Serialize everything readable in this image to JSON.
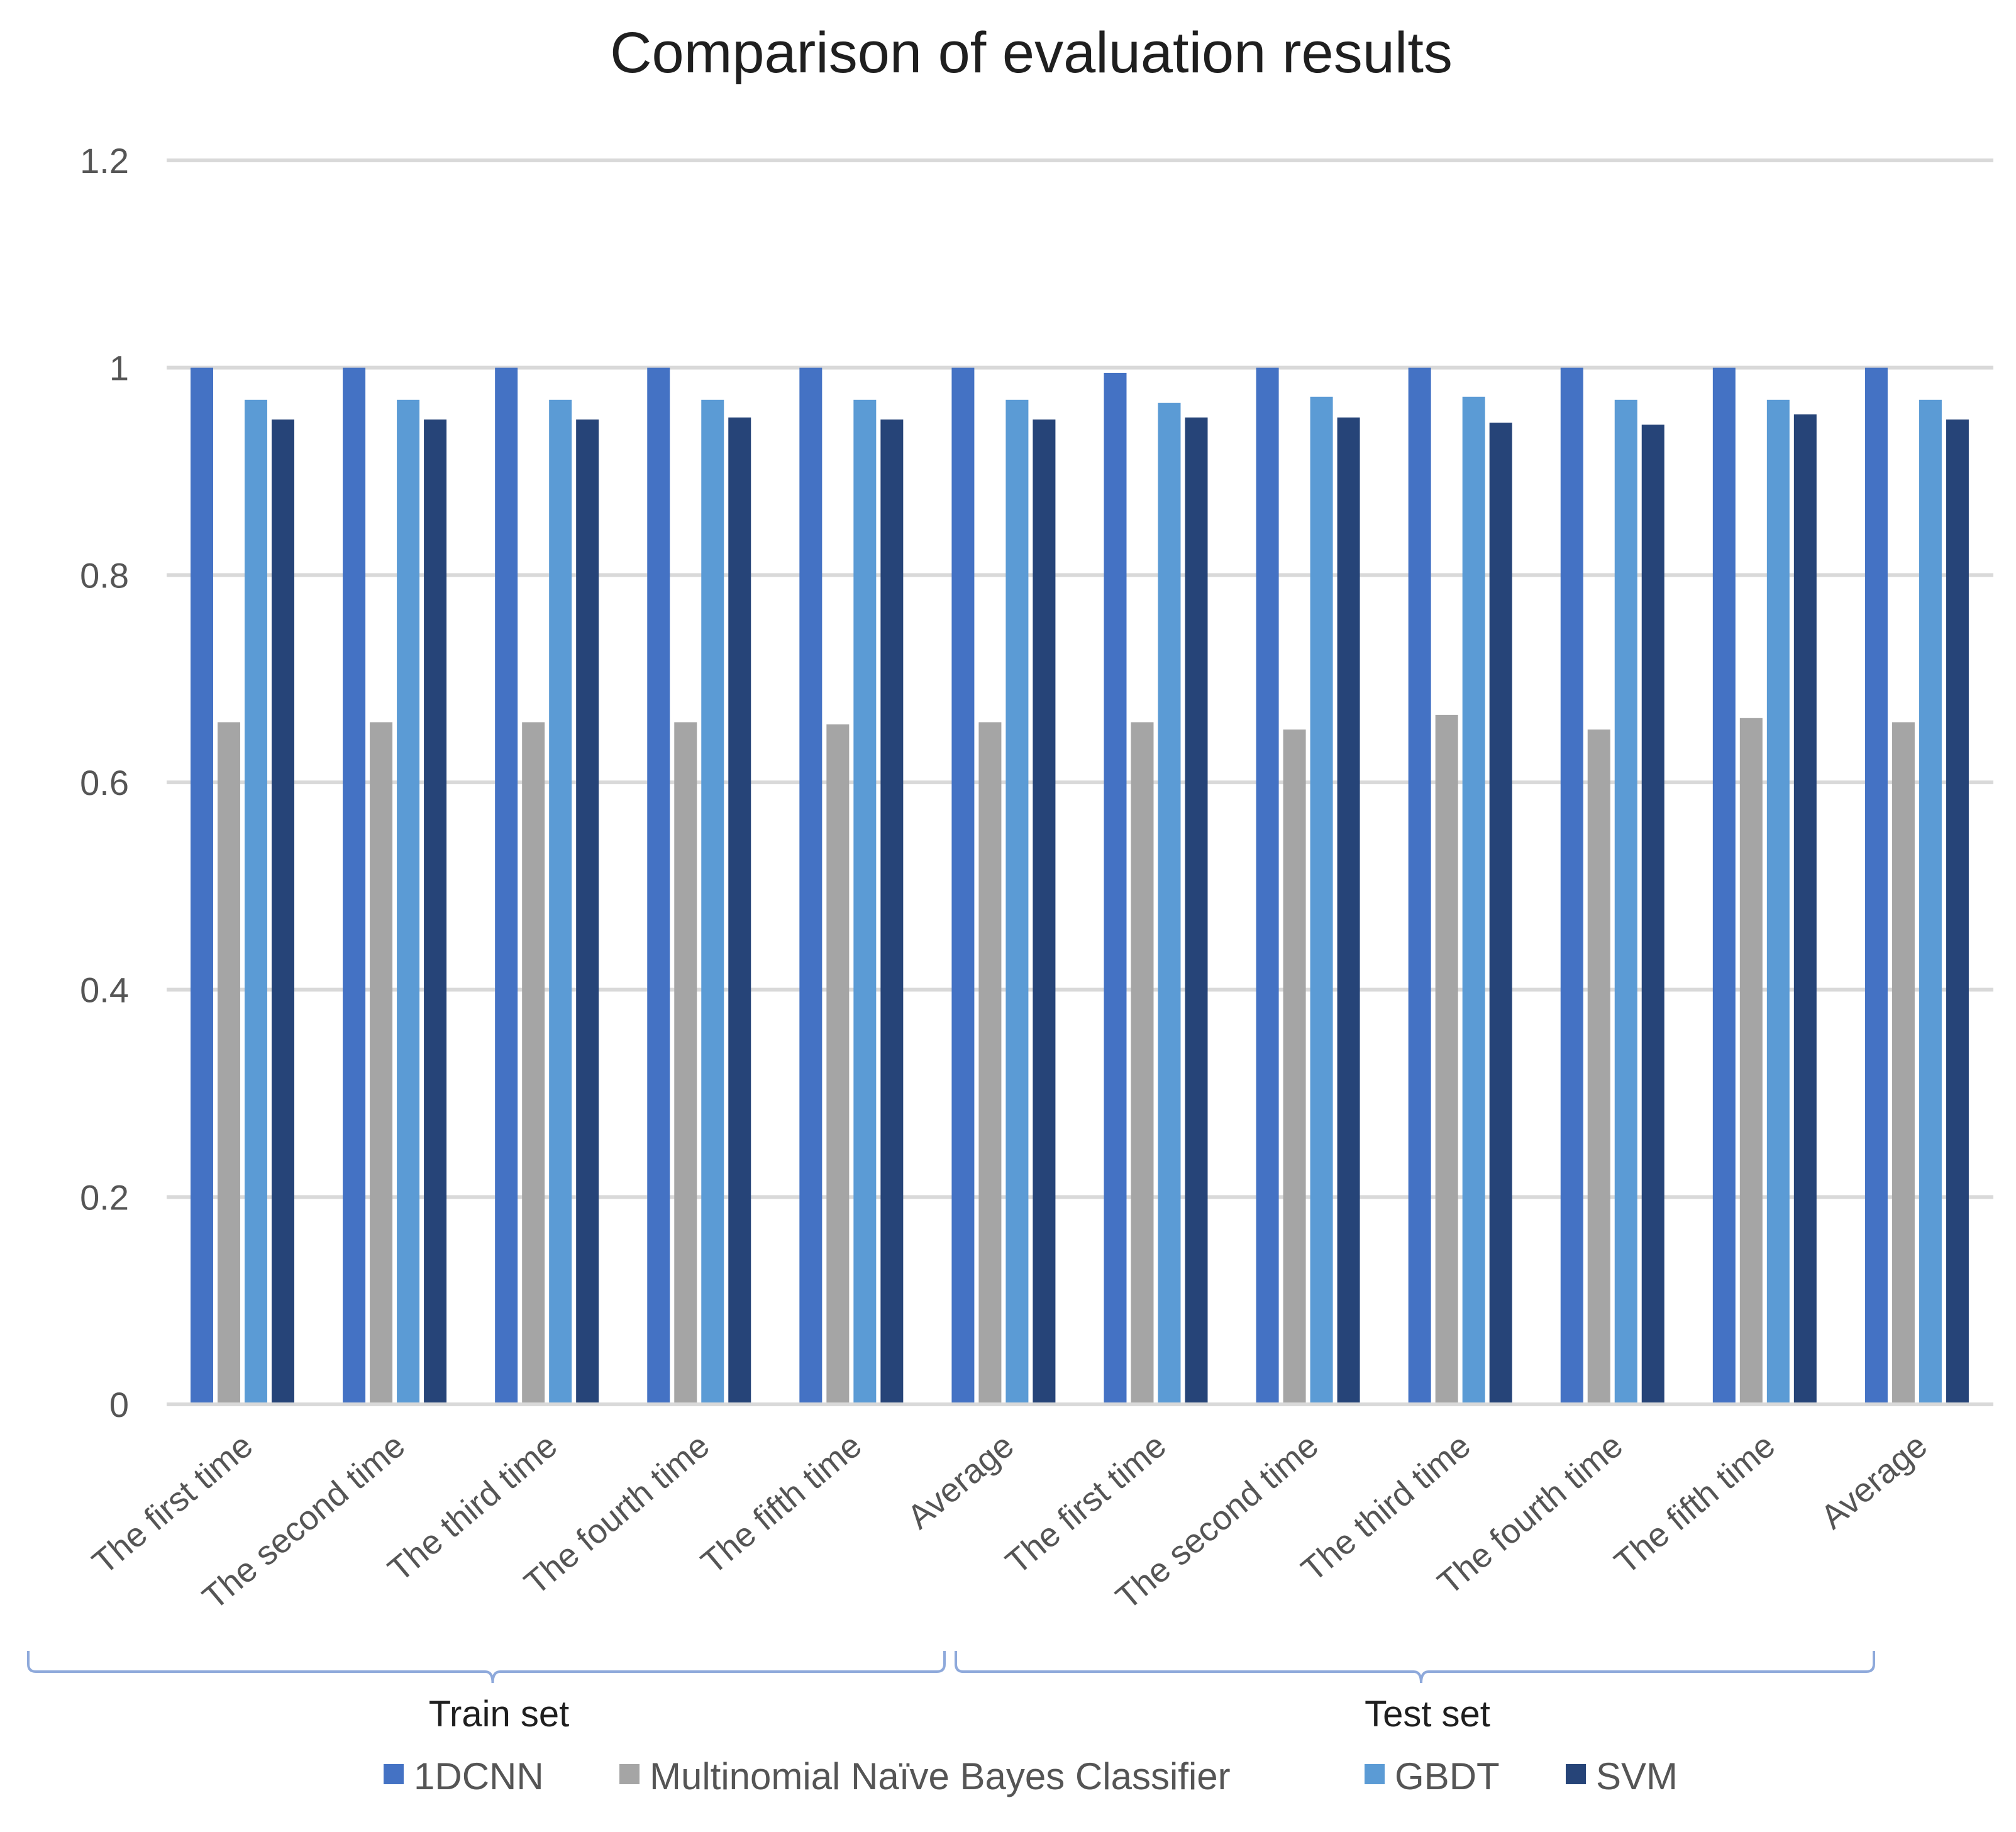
{
  "chart_data": {
    "type": "bar",
    "title": "Comparison of evaluation results",
    "xlabel": "",
    "ylabel": "",
    "ylim": [
      0,
      1.2
    ],
    "yticks": [
      "0",
      "0.2",
      "0.4",
      "0.6",
      "0.8",
      "1",
      "1.2"
    ],
    "categories": [
      "The first time",
      "The second time",
      "The third time",
      "The fourth time",
      "The fifth time",
      "Average",
      "The first time",
      "The second time",
      "The third time",
      "The fourth time",
      "The fifth time",
      "Average"
    ],
    "groups": [
      {
        "label": "Train set",
        "start": 0,
        "end": 5
      },
      {
        "label": "Test set",
        "start": 6,
        "end": 11
      }
    ],
    "series": [
      {
        "name": "1DCNN",
        "color": "#4472C4",
        "values": [
          1.0,
          1.0,
          1.0,
          1.0,
          1.0,
          1.0,
          0.995,
          1.0,
          1.0,
          1.0,
          1.0,
          1.0
        ]
      },
      {
        "name": "Multinomial  Naïve Bayes Classifier",
        "color": "#A5A5A5",
        "values": [
          0.658,
          0.658,
          0.658,
          0.658,
          0.656,
          0.658,
          0.658,
          0.651,
          0.665,
          0.651,
          0.662,
          0.658
        ]
      },
      {
        "name": "GBDT",
        "color": "#5B9BD5",
        "values": [
          0.969,
          0.969,
          0.969,
          0.969,
          0.969,
          0.969,
          0.966,
          0.972,
          0.972,
          0.969,
          0.969,
          0.969
        ]
      },
      {
        "name": "SVM",
        "color": "#264478",
        "values": [
          0.95,
          0.95,
          0.95,
          0.952,
          0.95,
          0.95,
          0.952,
          0.952,
          0.947,
          0.945,
          0.955,
          0.95
        ]
      }
    ],
    "grid": true,
    "legend_position": "bottom"
  }
}
